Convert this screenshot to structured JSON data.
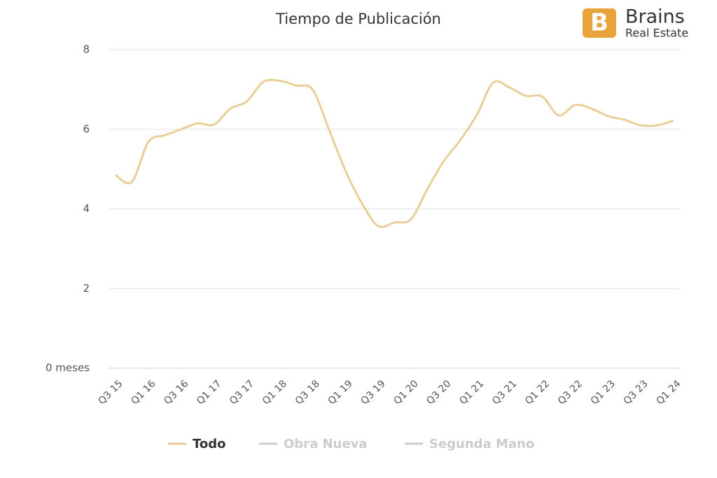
{
  "chart_data": {
    "type": "line",
    "title": "Tiempo de Publicación",
    "logo": {
      "name": "Brains",
      "tagline": "Real Estate"
    },
    "categories": [
      "Q3 15",
      null,
      "Q1 16",
      null,
      "Q3 16",
      null,
      "Q1 17",
      null,
      "Q3 17",
      null,
      "Q1 18",
      null,
      "Q3 18",
      null,
      "Q1 19",
      null,
      "Q3 19",
      null,
      "Q1 20",
      null,
      "Q3 20",
      null,
      "Q1 21",
      null,
      "Q3 21",
      null,
      "Q1 22",
      null,
      "Q3 22",
      null,
      "Q1 23",
      null,
      "Q3 23",
      null,
      "Q1 24"
    ],
    "series": [
      {
        "name": "Todo",
        "color": "#e8cf98",
        "values": [
          4.85,
          4.68,
          5.68,
          5.85,
          6.0,
          6.15,
          6.12,
          6.52,
          6.7,
          7.19,
          7.22,
          7.1,
          7.0,
          6.0,
          4.97,
          4.15,
          3.57,
          3.66,
          3.74,
          4.5,
          5.2,
          5.73,
          6.35,
          7.17,
          7.05,
          6.84,
          6.82,
          6.35,
          6.61,
          6.52,
          6.33,
          6.24,
          6.1,
          6.1,
          6.22
        ]
      }
    ],
    "hidden_series": [
      {
        "name": "Obra Nueva",
        "color": "#cccccc"
      },
      {
        "name": "Segunda Mano",
        "color": "#cccccc"
      }
    ],
    "ylim": [
      0,
      8
    ],
    "yticks": [
      {
        "value": 0,
        "label": "0 meses"
      },
      2,
      4,
      6,
      8
    ],
    "grid": true
  }
}
